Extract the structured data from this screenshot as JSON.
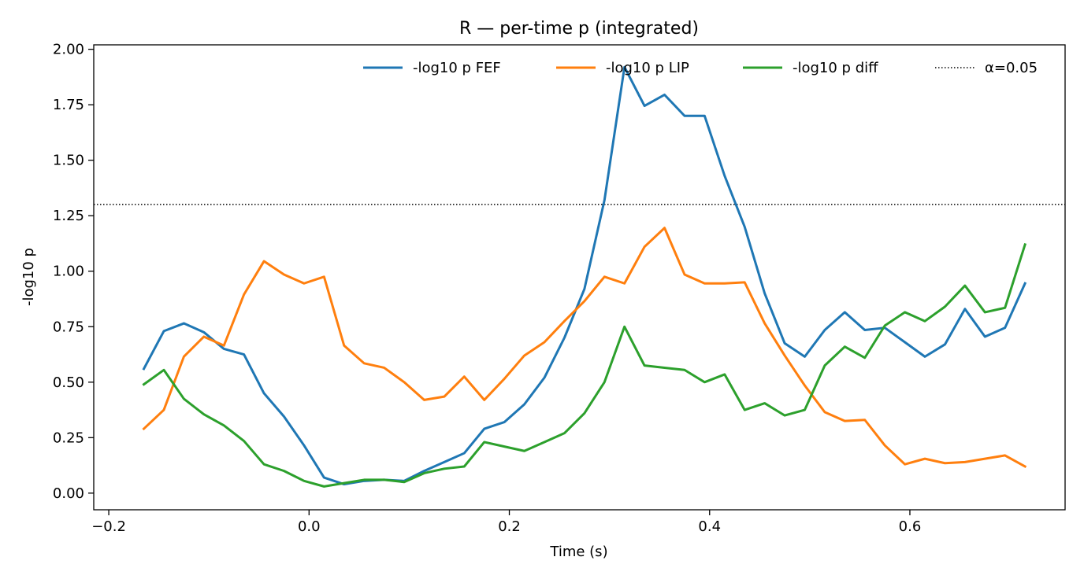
{
  "chart_data": {
    "type": "line",
    "title": "R — per-time p (integrated)",
    "xlabel": "Time (s)",
    "ylabel": "-log10 p",
    "xlim": [
      -0.215,
      0.755
    ],
    "ylim": [
      -0.075,
      2.02
    ],
    "xticks": [
      -0.2,
      0.0,
      0.2,
      0.4,
      0.6
    ],
    "xtick_labels": [
      "−0.2",
      "0.0",
      "0.2",
      "0.4",
      "0.6"
    ],
    "yticks": [
      0.0,
      0.25,
      0.5,
      0.75,
      1.0,
      1.25,
      1.5,
      1.75,
      2.0
    ],
    "ytick_labels": [
      "0.00",
      "0.25",
      "0.50",
      "0.75",
      "1.00",
      "1.25",
      "1.50",
      "1.75",
      "2.00"
    ],
    "grid": false,
    "legend_placement": "top-right",
    "x": [
      -0.165,
      -0.145,
      -0.125,
      -0.105,
      -0.085,
      -0.065,
      -0.045,
      -0.025,
      -0.005,
      0.015,
      0.035,
      0.055,
      0.075,
      0.095,
      0.115,
      0.135,
      0.155,
      0.175,
      0.195,
      0.215,
      0.235,
      0.255,
      0.275,
      0.295,
      0.315,
      0.335,
      0.355,
      0.375,
      0.395,
      0.415,
      0.435,
      0.455,
      0.475,
      0.495,
      0.515,
      0.535,
      0.555,
      0.575,
      0.595,
      0.615,
      0.635,
      0.655,
      0.675,
      0.695,
      0.715
    ],
    "series": [
      {
        "name": "-log10 p FEF",
        "color": "#1f77b4",
        "values": [
          0.56,
          0.73,
          0.765,
          0.725,
          0.65,
          0.625,
          0.45,
          0.345,
          0.215,
          0.07,
          0.04,
          0.055,
          0.06,
          0.055,
          0.1,
          0.14,
          0.18,
          0.29,
          0.32,
          0.4,
          0.52,
          0.7,
          0.92,
          1.32,
          1.92,
          1.745,
          1.795,
          1.7,
          1.7,
          1.43,
          1.2,
          0.9,
          0.675,
          0.615,
          0.735,
          0.815,
          0.735,
          0.745,
          0.68,
          0.615,
          0.67,
          0.83,
          0.705,
          0.745,
          0.945
        ]
      },
      {
        "name": "-log10 p LIP",
        "color": "#ff7f0e",
        "values": [
          0.29,
          0.375,
          0.615,
          0.705,
          0.665,
          0.895,
          1.045,
          0.985,
          0.945,
          0.975,
          0.665,
          0.585,
          0.565,
          0.5,
          0.42,
          0.435,
          0.525,
          0.42,
          0.515,
          0.62,
          0.68,
          0.775,
          0.865,
          0.975,
          0.945,
          1.11,
          1.195,
          0.985,
          0.945,
          0.945,
          0.95,
          0.765,
          0.62,
          0.485,
          0.365,
          0.325,
          0.33,
          0.215,
          0.13,
          0.155,
          0.135,
          0.14,
          0.155,
          0.17,
          0.12
        ]
      },
      {
        "name": "-log10 p diff",
        "color": "#2ca02c",
        "values": [
          0.49,
          0.555,
          0.425,
          0.355,
          0.305,
          0.235,
          0.13,
          0.1,
          0.055,
          0.03,
          0.045,
          0.06,
          0.06,
          0.05,
          0.09,
          0.11,
          0.12,
          0.23,
          0.21,
          0.19,
          0.23,
          0.27,
          0.36,
          0.5,
          0.75,
          0.575,
          0.565,
          0.555,
          0.5,
          0.535,
          0.375,
          0.405,
          0.35,
          0.375,
          0.575,
          0.66,
          0.61,
          0.755,
          0.815,
          0.775,
          0.84,
          0.935,
          0.815,
          0.835,
          1.12
        ]
      }
    ],
    "threshold": {
      "name": "α=0.05",
      "value": 1.30103,
      "color": "#000000",
      "style": "dotted"
    }
  }
}
